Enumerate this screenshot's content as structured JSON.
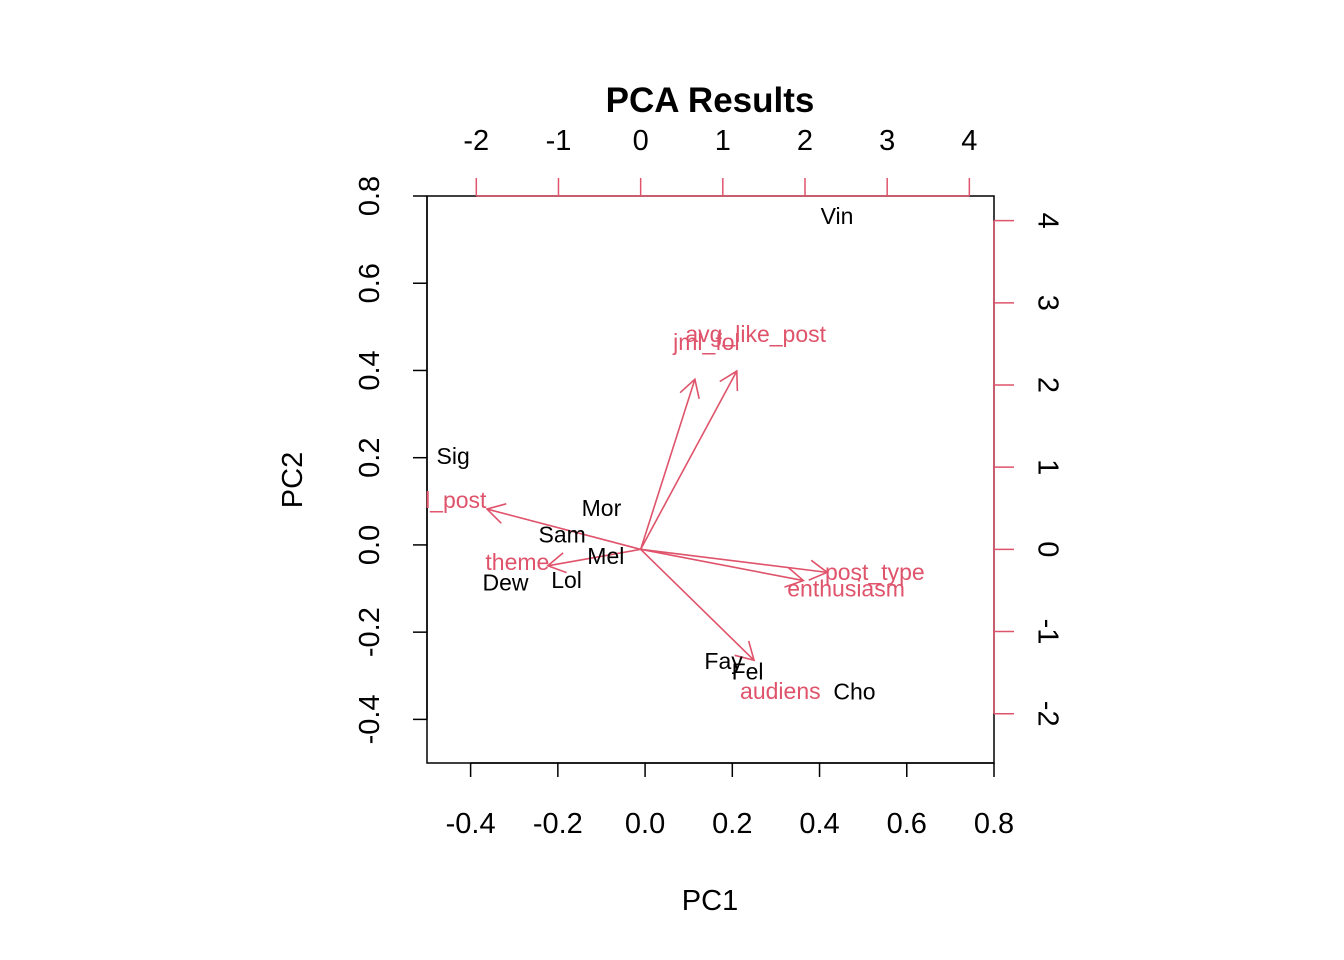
{
  "chart_data": {
    "type": "scatter",
    "subtype": "biplot",
    "title": "PCA Results",
    "xlabel": "PC1",
    "ylabel": "PC2",
    "xlim": [
      -0.5,
      0.8
    ],
    "ylim": [
      -0.5,
      0.8
    ],
    "x_ticks": [
      -0.4,
      -0.2,
      0.0,
      0.2,
      0.4,
      0.6,
      0.8
    ],
    "y_ticks": [
      -0.4,
      -0.2,
      0.0,
      0.2,
      0.4,
      0.6,
      0.8
    ],
    "x_tick_labels": [
      "-0.4",
      "-0.2",
      "0.0",
      "0.2",
      "0.4",
      "0.6",
      "0.8"
    ],
    "y_tick_labels": [
      "-0.4",
      "-0.2",
      "0.0",
      "0.2",
      "0.4",
      "0.6",
      "0.8"
    ],
    "secondary_xlim": [
      -2.6,
      4.3
    ],
    "secondary_ylim": [
      -2.6,
      4.3
    ],
    "secondary_x_ticks": [
      -2,
      -1,
      0,
      1,
      2,
      3,
      4
    ],
    "secondary_y_ticks": [
      -2,
      -1,
      0,
      1,
      2,
      3,
      4
    ],
    "secondary_tick_labels": [
      "-2",
      "-1",
      "0",
      "1",
      "2",
      "3",
      "4"
    ],
    "variable_color": "#DF536B",
    "observations": [
      {
        "label": "Vin",
        "x": 0.44,
        "y": 0.75
      },
      {
        "label": "Sig",
        "x": -0.44,
        "y": 0.2
      },
      {
        "label": "Mor",
        "x": -0.1,
        "y": 0.08
      },
      {
        "label": "Sam",
        "x": -0.19,
        "y": 0.02
      },
      {
        "label": "Mel",
        "x": -0.09,
        "y": -0.03
      },
      {
        "label": "Dew",
        "x": -0.32,
        "y": -0.09
      },
      {
        "label": "Lol",
        "x": -0.18,
        "y": -0.085
      },
      {
        "label": "Fay",
        "x": 0.18,
        "y": -0.27
      },
      {
        "label": "Fel",
        "x": 0.235,
        "y": -0.295
      },
      {
        "label": "Cho",
        "x": 0.48,
        "y": -0.34
      }
    ],
    "variables": [
      {
        "label": "avg_like_post",
        "x": 1.17,
        "y": 2.17,
        "label_x": 1.4,
        "label_y": 2.6
      },
      {
        "label": "jml_fol",
        "x": 0.66,
        "y": 2.07,
        "label_x": 0.8,
        "label_y": 2.5
      },
      {
        "label": "l_post",
        "x": -1.87,
        "y": 0.49,
        "label_x": -2.25,
        "label_y": 0.58
      },
      {
        "label": "theme",
        "x": -1.13,
        "y": -0.2,
        "label_x": -1.5,
        "label_y": -0.18
      },
      {
        "label": "post_type",
        "x": 2.27,
        "y": -0.28,
        "label_x": 2.85,
        "label_y": -0.3
      },
      {
        "label": "enthusiasm",
        "x": 1.98,
        "y": -0.38,
        "label_x": 2.5,
        "label_y": -0.5
      },
      {
        "label": "audiens",
        "x": 1.38,
        "y": -1.35,
        "label_x": 1.7,
        "label_y": -1.75
      }
    ]
  }
}
